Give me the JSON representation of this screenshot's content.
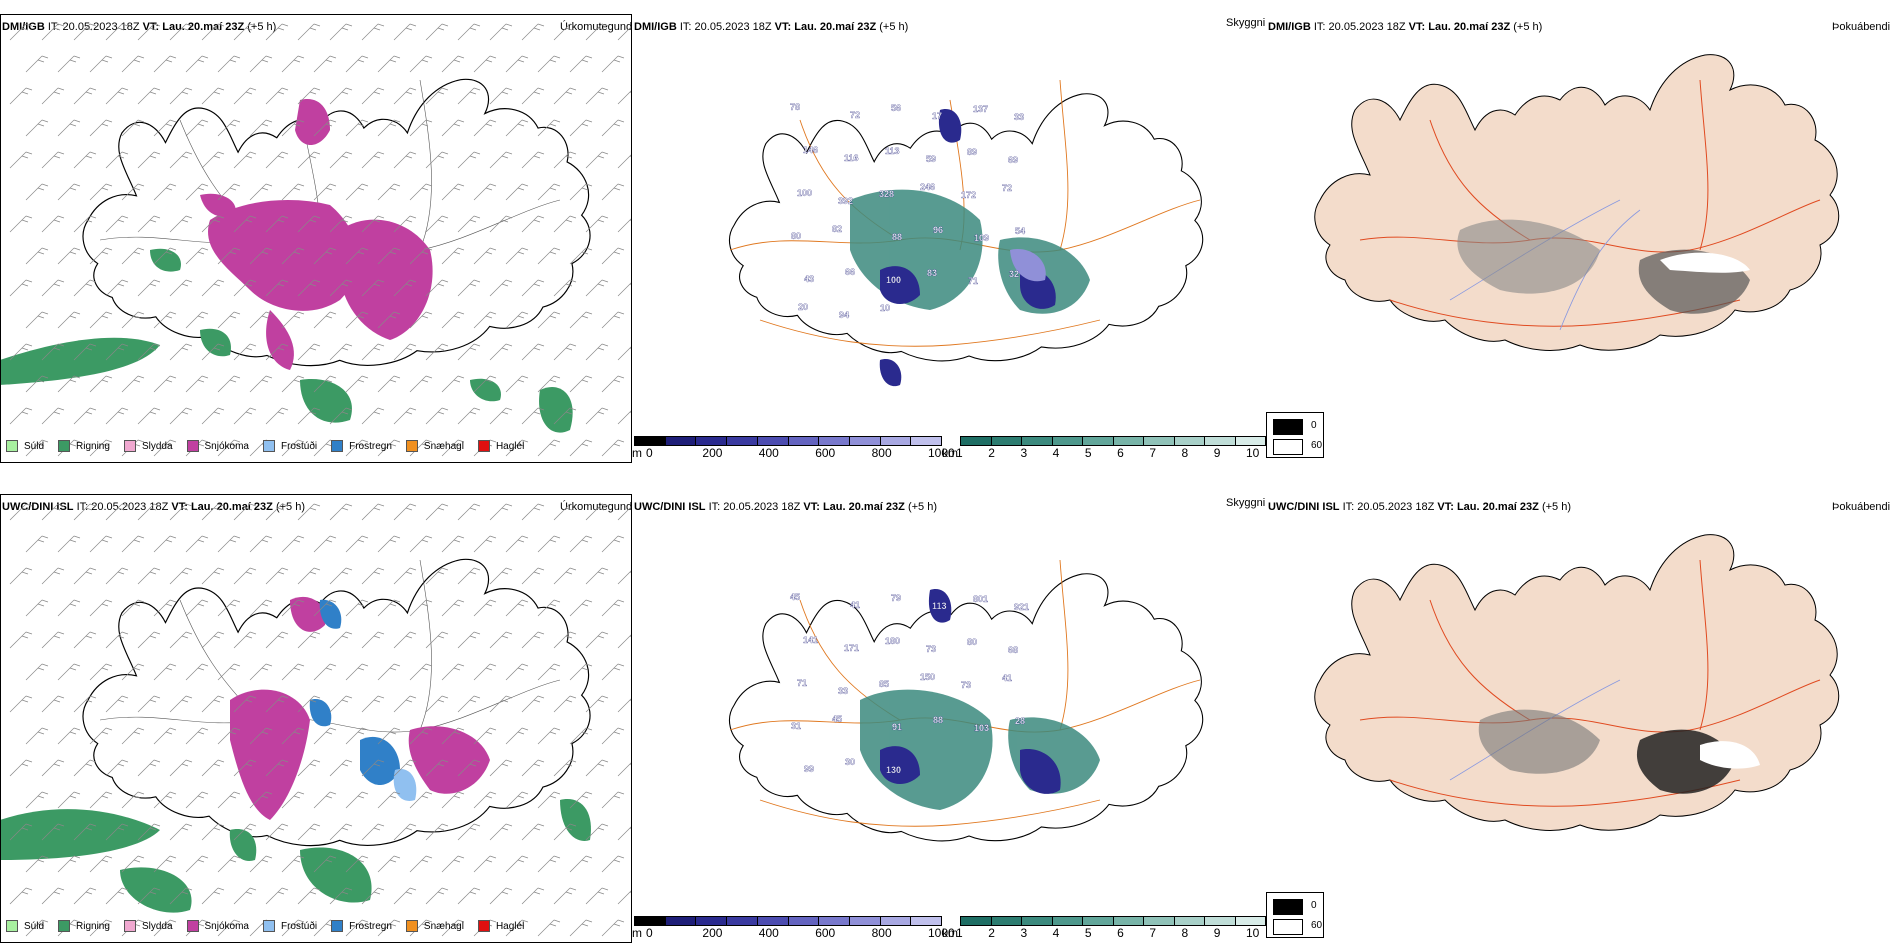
{
  "rows": [
    {
      "model": "DMI/IGB",
      "it_label": "IT:",
      "it_value": "20.05.2023 18Z",
      "vt_label": "VT:",
      "vt_value": "Lau. 20.maí 23Z",
      "lead": "(+5 h)"
    },
    {
      "model": "UWC/DINI ISL",
      "it_label": "IT:",
      "it_value": "20.05.2023 18Z",
      "vt_label": "VT:",
      "vt_value": "Lau. 20.maí 23Z",
      "lead": "(+5 h)"
    }
  ],
  "params": {
    "precip_type": "Úrkomutegund",
    "cloud_base": "Skyggni",
    "fog": "Þokuábendi"
  },
  "precip_legend": [
    {
      "label": "Súld",
      "color": "#a8f0a0"
    },
    {
      "label": "Rigning",
      "color": "#3c9a64"
    },
    {
      "label": "Slydda",
      "color": "#f0a8d0"
    },
    {
      "label": "Snjókoma",
      "color": "#c040a0"
    },
    {
      "label": "Frostúði",
      "color": "#90c0f0"
    },
    {
      "label": "Frostregn",
      "color": "#3080c8"
    },
    {
      "label": "Snæhagl",
      "color": "#f09020"
    },
    {
      "label": "Haglél",
      "color": "#e01010"
    }
  ],
  "cloud_legend": {
    "unit_m": "m",
    "m_ticks": [
      "0",
      "200",
      "400",
      "600",
      "800",
      "1000"
    ],
    "m_colors": [
      "#000000",
      "#1e1e78",
      "#2a2a8e",
      "#3a3aa0",
      "#4c4cb0",
      "#6464c0",
      "#7878cc",
      "#9090d8",
      "#a8a8e2",
      "#c0c0ec"
    ],
    "unit_km": "km",
    "km_ticks": [
      "1",
      "2",
      "3",
      "4",
      "5",
      "6",
      "7",
      "8",
      "9",
      "10"
    ],
    "km_colors": [
      "#1e6e64",
      "#2c7c70",
      "#3c8a7e",
      "#4e988c",
      "#62a69a",
      "#78b4a8",
      "#90c2b8",
      "#a8d0c8",
      "#c0ded8",
      "#d8ece8"
    ]
  },
  "fog_legend": [
    {
      "label": "0",
      "color": "#000000"
    },
    {
      "label": "60",
      "color": "#ffffff"
    }
  ],
  "height_labels": [
    [
      "78",
      "72",
      "56",
      "17",
      "137",
      "33",
      "146",
      "116",
      "113",
      "59",
      "89",
      "69",
      "100",
      "392",
      "328",
      "246",
      "172",
      "72",
      "80",
      "82",
      "88",
      "96",
      "109",
      "54",
      "43",
      "66",
      "100",
      "83",
      "71",
      "32",
      "20",
      "94",
      "10"
    ],
    [
      "45",
      "41",
      "79",
      "113",
      "801",
      "921",
      "141",
      "171",
      "180",
      "73",
      "80",
      "68",
      "71",
      "33",
      "85",
      "150",
      "73",
      "41",
      "31",
      "45",
      "91",
      "88",
      "103",
      "28",
      "99",
      "30",
      "130"
    ]
  ]
}
